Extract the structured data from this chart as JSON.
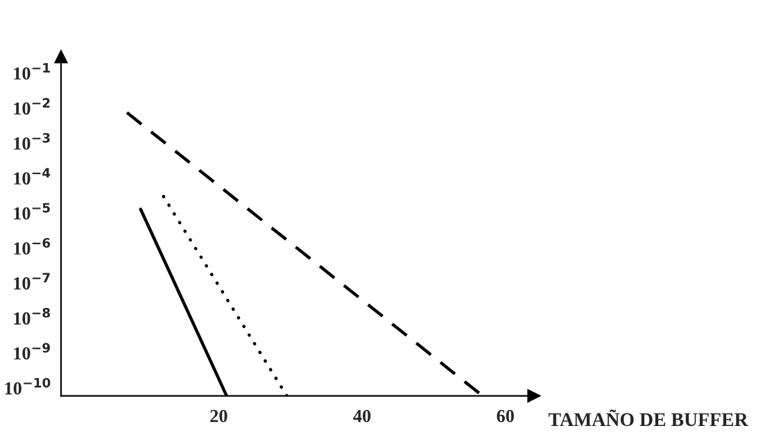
{
  "chart_data": {
    "type": "line",
    "xlabel": "TAMAÑO DE BUFFER",
    "log": "y",
    "xlim": [
      -2,
      64
    ],
    "ylim": [
      6e-11,
      0.3
    ],
    "xticks": [
      20,
      40,
      60
    ],
    "yticks": [
      {
        "value": 1e-10,
        "label": "10$^{−10}$"
      },
      {
        "value": 1e-09,
        "label": "10$^{−9}$"
      },
      {
        "value": 1e-08,
        "label": "10$^{−8}$"
      },
      {
        "value": 1e-07,
        "label": "10$^{−7}$"
      },
      {
        "value": 1e-06,
        "label": "10$^{−6}$"
      },
      {
        "value": 1e-05,
        "label": "10$^{−5}$"
      },
      {
        "value": 0.0001,
        "label": "10$^{−4}$"
      },
      {
        "value": 0.001,
        "label": "10$^{−3}$"
      },
      {
        "value": 0.01,
        "label": "10$^{−2}$"
      },
      {
        "value": 0.1,
        "label": "10$^{−1}$"
      }
    ],
    "grid": false,
    "legend": false,
    "marker": "none",
    "series": [
      {
        "color": "#000000",
        "line_style": "solid",
        "x": [
          9.1,
          21.1
        ],
        "values": [
          1.3e-05,
          6e-11
        ]
      },
      {
        "color": "#000000",
        "line_style": "dotted",
        "x": [
          12.3,
          29.5
        ],
        "values": [
          3e-05,
          6e-11
        ]
      },
      {
        "color": "#000000",
        "line_style": "dashed",
        "x": [
          7.2,
          56.8
        ],
        "values": [
          0.0075,
          6e-11
        ]
      }
    ]
  }
}
